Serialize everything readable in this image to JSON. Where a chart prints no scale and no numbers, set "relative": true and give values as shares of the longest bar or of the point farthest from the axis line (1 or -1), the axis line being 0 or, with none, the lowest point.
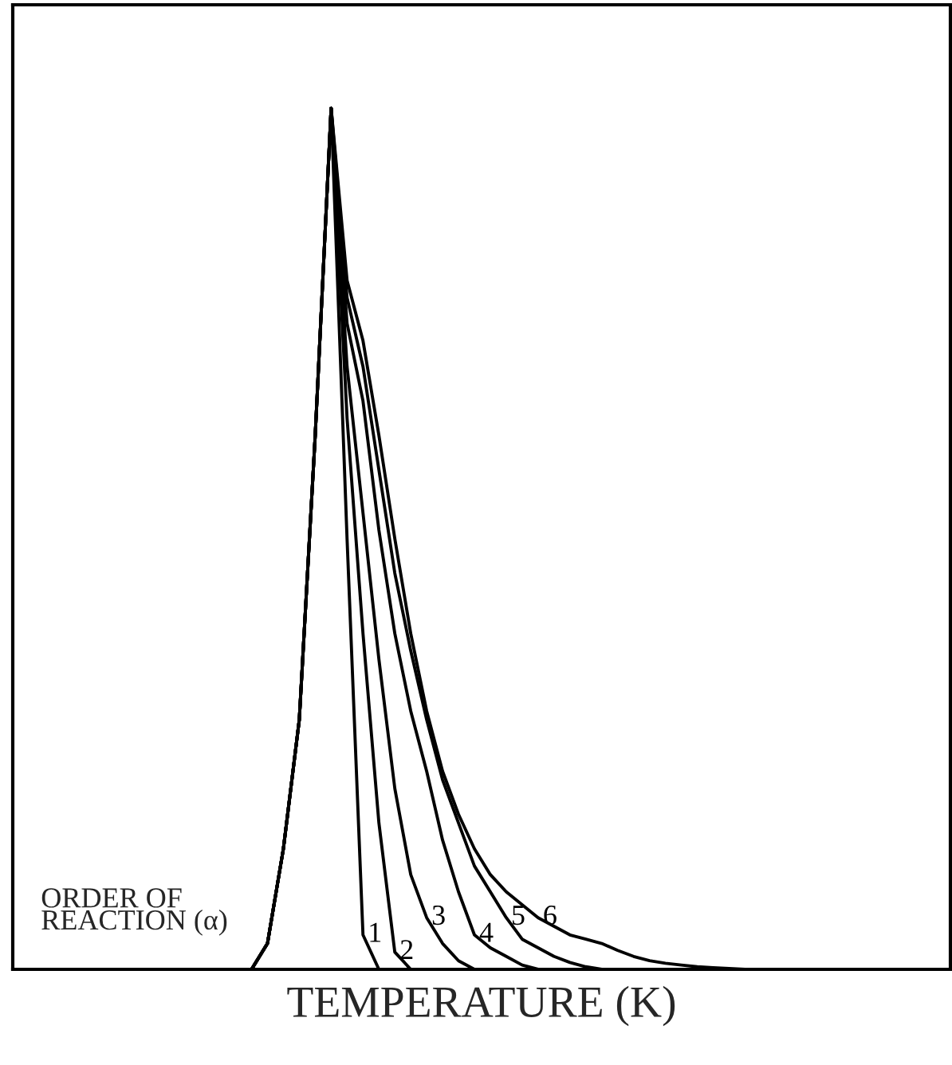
{
  "chart_data": {
    "type": "line",
    "relative": true,
    "xlabel": "TEMPERATURE (K)",
    "annotations": [
      "ORDER OF\nREACTION (α)"
    ],
    "color": "#000000",
    "categories": [
      null,
      null,
      null,
      null,
      null,
      null,
      null,
      null,
      null,
      null,
      null,
      null,
      null,
      null,
      null,
      null,
      null,
      null,
      null,
      null,
      null,
      null,
      null,
      null,
      null,
      null,
      null,
      null,
      null,
      null,
      null,
      null,
      null,
      null,
      null,
      null,
      null,
      null,
      null,
      null,
      null,
      null,
      null,
      null,
      null,
      null,
      null,
      null,
      null,
      null,
      null,
      null,
      null,
      null,
      null,
      null,
      null,
      null,
      null
    ],
    "series": [
      {
        "name": "1",
        "values": [
          0,
          0,
          0,
          0,
          0,
          0,
          0,
          0,
          0,
          0,
          0,
          0,
          0,
          0,
          0,
          0,
          0.03,
          0.14,
          0.29,
          0.62,
          1,
          0.5,
          0.04,
          0,
          0,
          0,
          0,
          0,
          0,
          0,
          0,
          0,
          0,
          0,
          0,
          0,
          0,
          0,
          0,
          0,
          0,
          0,
          0,
          0,
          0,
          0,
          0,
          0,
          0,
          0,
          0,
          0,
          0,
          0,
          0,
          0,
          0,
          0,
          0
        ]
      },
      {
        "name": "2",
        "values": [
          0,
          0,
          0,
          0,
          0,
          0,
          0,
          0,
          0,
          0,
          0,
          0,
          0,
          0,
          0,
          0,
          0.03,
          0.14,
          0.29,
          0.62,
          1,
          0.64,
          0.39,
          0.17,
          0.02,
          0,
          0,
          0,
          0,
          0,
          0,
          0,
          0,
          0,
          0,
          0,
          0,
          0,
          0,
          0,
          0,
          0,
          0,
          0,
          0,
          0,
          0,
          0,
          0,
          0,
          0,
          0,
          0,
          0,
          0,
          0,
          0,
          0,
          0
        ]
      },
      {
        "name": "3",
        "values": [
          0,
          0,
          0,
          0,
          0,
          0,
          0,
          0,
          0,
          0,
          0,
          0,
          0,
          0,
          0,
          0,
          0.03,
          0.14,
          0.29,
          0.62,
          1,
          0.7,
          0.53,
          0.36,
          0.21,
          0.11,
          0.06,
          0.03,
          0.01,
          0,
          0,
          0,
          0,
          0,
          0,
          0,
          0,
          0,
          0,
          0,
          0,
          0,
          0,
          0,
          0,
          0,
          0,
          0,
          0,
          0,
          0,
          0,
          0,
          0,
          0,
          0,
          0,
          0,
          0
        ]
      },
      {
        "name": "4",
        "values": [
          0,
          0,
          0,
          0,
          0,
          0,
          0,
          0,
          0,
          0,
          0,
          0,
          0,
          0,
          0,
          0,
          0.03,
          0.14,
          0.29,
          0.62,
          1,
          0.75,
          0.66,
          0.51,
          0.39,
          0.3,
          0.23,
          0.15,
          0.09,
          0.04,
          0.025,
          0.015,
          0.005,
          0,
          0,
          0,
          0,
          0,
          0,
          0,
          0,
          0,
          0,
          0,
          0,
          0,
          0,
          0,
          0,
          0,
          0,
          0,
          0,
          0,
          0,
          0,
          0,
          0,
          0
        ]
      },
      {
        "name": "5",
        "values": [
          0,
          0,
          0,
          0,
          0,
          0,
          0,
          0,
          0,
          0,
          0,
          0,
          0,
          0,
          0,
          0,
          0.03,
          0.14,
          0.29,
          0.62,
          1,
          0.78,
          0.7,
          0.58,
          0.46,
          0.37,
          0.29,
          0.22,
          0.17,
          0.12,
          0.09,
          0.06,
          0.035,
          0.025,
          0.015,
          0.008,
          0.003,
          0,
          0,
          0,
          0,
          0,
          0,
          0,
          0,
          0,
          0,
          0,
          0,
          0,
          0,
          0,
          0,
          0,
          0,
          0,
          0,
          0,
          0
        ]
      },
      {
        "name": "6",
        "values": [
          0,
          0,
          0,
          0,
          0,
          0,
          0,
          0,
          0,
          0,
          0,
          0,
          0,
          0,
          0,
          0,
          0.03,
          0.14,
          0.29,
          0.62,
          1,
          0.8,
          0.73,
          0.62,
          0.5,
          0.39,
          0.3,
          0.23,
          0.18,
          0.14,
          0.11,
          0.09,
          0.075,
          0.06,
          0.05,
          0.04,
          0.035,
          0.03,
          0.022,
          0.015,
          0.01,
          0.007,
          0.005,
          0.003,
          0.002,
          0.001,
          0,
          0,
          0,
          0,
          0,
          0,
          0,
          0,
          0,
          0,
          0,
          0,
          0
        ]
      }
    ]
  }
}
